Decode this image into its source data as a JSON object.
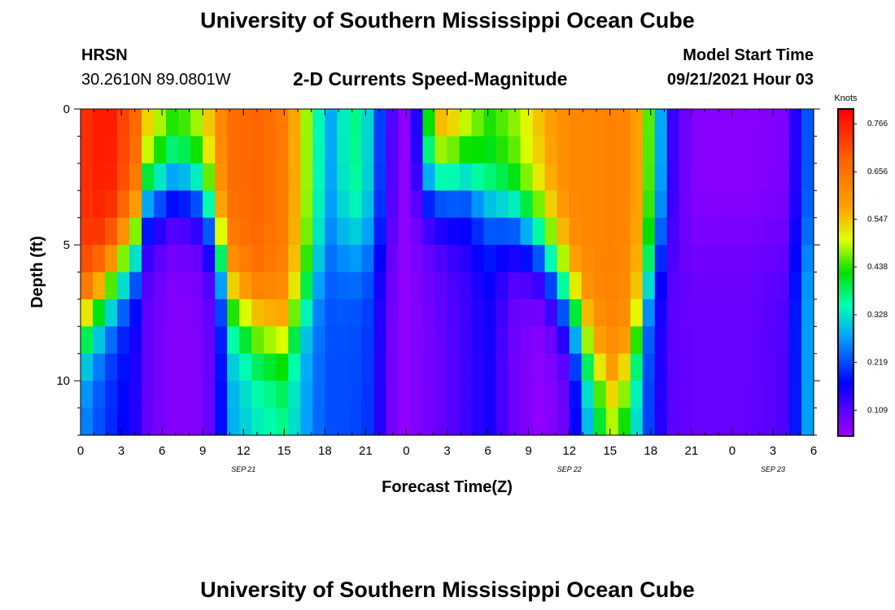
{
  "header": {
    "title": "University of Southern Mississippi Ocean Cube",
    "station": "HRSN",
    "coords": "30.2610N  89.0801W",
    "plot_title": "2-D Currents Speed-Magnitude",
    "model_label": "Model Start Time",
    "model_time": "09/21/2021 Hour 03"
  },
  "footer": {
    "title": "University of Southern Mississippi Ocean Cube"
  },
  "chart_data": {
    "type": "heatmap",
    "title": "2-D Currents Speed-Magnitude",
    "xlabel": "Forecast Time(Z)",
    "ylabel": "Depth (ft)",
    "x_start_hour": 0,
    "x_end_hour": 54,
    "x_ticks": [
      {
        "h": 0,
        "label": "0"
      },
      {
        "h": 3,
        "label": "3"
      },
      {
        "h": 6,
        "label": "6"
      },
      {
        "h": 9,
        "label": "9"
      },
      {
        "h": 12,
        "label": "12"
      },
      {
        "h": 15,
        "label": "15"
      },
      {
        "h": 18,
        "label": "18"
      },
      {
        "h": 21,
        "label": "21"
      },
      {
        "h": 24,
        "label": "0"
      },
      {
        "h": 27,
        "label": "3"
      },
      {
        "h": 30,
        "label": "6"
      },
      {
        "h": 33,
        "label": "9"
      },
      {
        "h": 36,
        "label": "12"
      },
      {
        "h": 39,
        "label": "15"
      },
      {
        "h": 42,
        "label": "18"
      },
      {
        "h": 45,
        "label": "21"
      },
      {
        "h": 48,
        "label": "0"
      },
      {
        "h": 51,
        "label": "3"
      },
      {
        "h": 54,
        "label": "6"
      }
    ],
    "date_labels": [
      {
        "h": 12,
        "label": "SEP 21"
      },
      {
        "h": 36,
        "label": "SEP 22"
      },
      {
        "h": 51,
        "label": "SEP 23"
      }
    ],
    "depth_range": [
      0,
      12
    ],
    "y_ticks": [
      {
        "d": 0,
        "label": "0"
      },
      {
        "d": 5,
        "label": "5"
      },
      {
        "d": 10,
        "label": "10"
      }
    ],
    "depth_levels": [
      0.5,
      1.5,
      2.5,
      3.5,
      4.5,
      5.5,
      6.5,
      7.5,
      8.5,
      9.5,
      10.5,
      11.5
    ],
    "colorbar": {
      "unit": "Knots",
      "min": 0.05,
      "max": 0.8,
      "tick_values": [
        0.109,
        0.219,
        0.328,
        0.438,
        0.547,
        0.656,
        0.766
      ],
      "tick_labels": [
        "0.109",
        "0.219",
        "0.328",
        "0.438",
        "0.547",
        "0.656",
        "0.766"
      ]
    },
    "time_profiles": [
      {
        "h": 0,
        "surface": 0.74,
        "bottom": 0.26,
        "transition_depth": 8.0
      },
      {
        "h": 2,
        "surface": 0.78,
        "bottom": 0.2,
        "transition_depth": 6.5
      },
      {
        "h": 4,
        "surface": 0.68,
        "bottom": 0.15,
        "transition_depth": 5.0
      },
      {
        "h": 5,
        "surface": 0.55,
        "bottom": 0.1,
        "transition_depth": 3.0
      },
      {
        "h": 7,
        "surface": 0.46,
        "bottom": 0.07,
        "transition_depth": 2.5
      },
      {
        "h": 9,
        "surface": 0.52,
        "bottom": 0.08,
        "transition_depth": 3.0
      },
      {
        "h": 10,
        "surface": 0.6,
        "bottom": 0.12,
        "transition_depth": 4.5
      },
      {
        "h": 11,
        "surface": 0.66,
        "bottom": 0.28,
        "transition_depth": 7.0
      },
      {
        "h": 13,
        "surface": 0.68,
        "bottom": 0.33,
        "transition_depth": 8.0
      },
      {
        "h": 15,
        "surface": 0.64,
        "bottom": 0.36,
        "transition_depth": 8.5
      },
      {
        "h": 16.5,
        "surface": 0.5,
        "bottom": 0.28,
        "transition_depth": 7.0
      },
      {
        "h": 17.5,
        "surface": 0.35,
        "bottom": 0.24,
        "transition_depth": 6.0
      },
      {
        "h": 18.5,
        "surface": 0.28,
        "bottom": 0.22,
        "transition_depth": 5.0
      },
      {
        "h": 20,
        "surface": 0.38,
        "bottom": 0.22,
        "transition_depth": 5.0
      },
      {
        "h": 21.5,
        "surface": 0.3,
        "bottom": 0.2,
        "transition_depth": 5.0
      },
      {
        "h": 22.5,
        "surface": 0.14,
        "bottom": 0.1,
        "transition_depth": 5.0
      },
      {
        "h": 24,
        "surface": 0.06,
        "bottom": 0.06,
        "transition_depth": 5.0
      },
      {
        "h": 25,
        "surface": 0.18,
        "bottom": 0.08,
        "transition_depth": 3.0
      },
      {
        "h": 26,
        "surface": 0.6,
        "bottom": 0.09,
        "transition_depth": 2.5
      },
      {
        "h": 27,
        "surface": 0.6,
        "bottom": 0.11,
        "transition_depth": 2.5
      },
      {
        "h": 28.5,
        "surface": 0.52,
        "bottom": 0.13,
        "transition_depth": 2.5
      },
      {
        "h": 30,
        "surface": 0.44,
        "bottom": 0.16,
        "transition_depth": 3.5
      },
      {
        "h": 32,
        "surface": 0.48,
        "bottom": 0.09,
        "transition_depth": 4.0
      },
      {
        "h": 34,
        "surface": 0.56,
        "bottom": 0.06,
        "transition_depth": 5.0
      },
      {
        "h": 36,
        "surface": 0.62,
        "bottom": 0.1,
        "transition_depth": 7.0
      },
      {
        "h": 37.5,
        "surface": 0.62,
        "bottom": 0.3,
        "transition_depth": 9.0
      },
      {
        "h": 39,
        "surface": 0.63,
        "bottom": 0.45,
        "transition_depth": 10.5
      },
      {
        "h": 40.5,
        "surface": 0.62,
        "bottom": 0.38,
        "transition_depth": 9.5
      },
      {
        "h": 41.5,
        "surface": 0.52,
        "bottom": 0.24,
        "transition_depth": 7.0
      },
      {
        "h": 42.5,
        "surface": 0.33,
        "bottom": 0.16,
        "transition_depth": 5.0
      },
      {
        "h": 43.5,
        "surface": 0.14,
        "bottom": 0.11,
        "transition_depth": 5.0
      },
      {
        "h": 45,
        "surface": 0.07,
        "bottom": 0.1,
        "transition_depth": 5.0
      },
      {
        "h": 49,
        "surface": 0.07,
        "bottom": 0.1,
        "transition_depth": 5.0
      },
      {
        "h": 52,
        "surface": 0.08,
        "bottom": 0.12,
        "transition_depth": 5.0
      },
      {
        "h": 53,
        "surface": 0.18,
        "bottom": 0.22,
        "transition_depth": 5.0
      },
      {
        "h": 54,
        "surface": 0.26,
        "bottom": 0.32,
        "transition_depth": 5.0
      }
    ]
  }
}
